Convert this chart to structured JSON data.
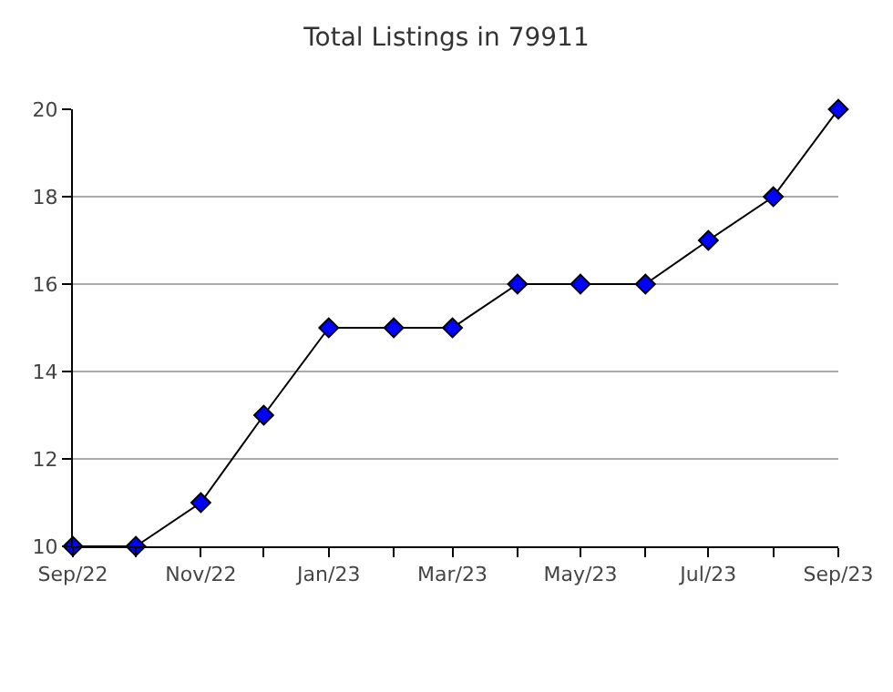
{
  "chart_data": {
    "type": "line",
    "title": "Total Listings in 79911",
    "x": [
      "2022-09",
      "2022-10",
      "2022-11",
      "2022-12",
      "2023-01",
      "2023-02",
      "2023-03",
      "2023-04",
      "2023-05",
      "2023-06",
      "2023-07",
      "2023-08",
      "2023-09"
    ],
    "series": [
      {
        "color": "#0000ff",
        "values": [
          10,
          10,
          11,
          13,
          15,
          15,
          15,
          16,
          16,
          16,
          17,
          18,
          20
        ]
      }
    ],
    "xlim": [
      "2022-09",
      "2023-09"
    ],
    "xticks": [
      {
        "value": "2022-09",
        "label": "Sep/22"
      },
      {
        "value": "2022-10",
        "label": null
      },
      {
        "value": "2022-11",
        "label": "Nov/22"
      },
      {
        "value": "2022-12",
        "label": null
      },
      {
        "value": "2023-01",
        "label": "Jan/23"
      },
      {
        "value": "2023-02",
        "label": null
      },
      {
        "value": "2023-03",
        "label": "Mar/23"
      },
      {
        "value": "2023-04",
        "label": null
      },
      {
        "value": "2023-05",
        "label": "May/23"
      },
      {
        "value": "2023-06",
        "label": null
      },
      {
        "value": "2023-07",
        "label": "Jul/23"
      },
      {
        "value": "2023-08",
        "label": null
      },
      {
        "value": "2023-09",
        "label": "Sep/23"
      }
    ],
    "ylim": [
      10,
      20
    ],
    "yticks": [
      10,
      12,
      14,
      16,
      18,
      20
    ],
    "grid": "y",
    "marker": "diamond",
    "line_style": "solid",
    "legend": false
  }
}
